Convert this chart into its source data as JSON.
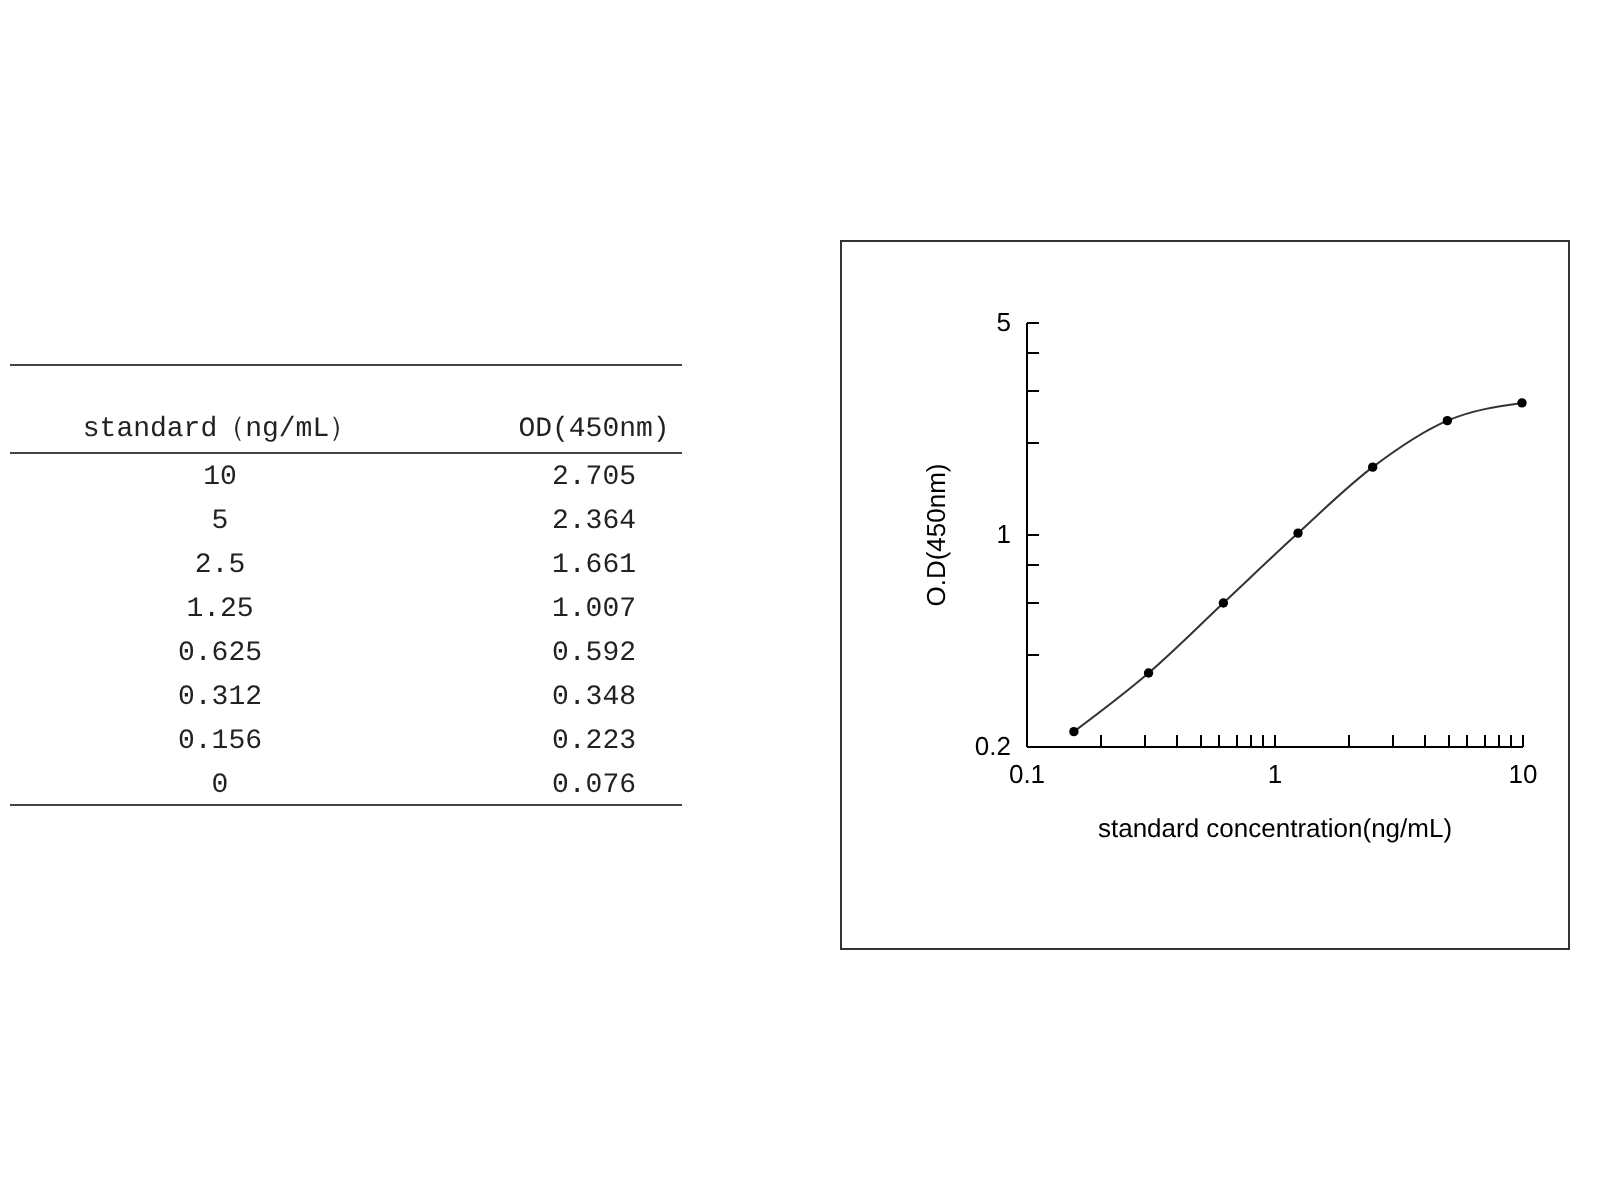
{
  "chart_data": [
    {
      "type": "other",
      "xlabel": "standard（ng/mL）",
      "ylabel": "OD(450nm)",
      "categories": [
        "10",
        "5",
        "2.5",
        "1.25",
        "0.625",
        "0.312",
        "0.156",
        "0"
      ],
      "values": [
        2.705,
        2.364,
        1.661,
        1.007,
        0.592,
        0.348,
        0.223,
        0.076
      ],
      "data_labels": true
    },
    {
      "type": "line",
      "xlabel": "standard concentration(ng/mL)",
      "ylabel": "O.D(450nm)",
      "log": "xy",
      "marker": "circle",
      "line_style": "solid",
      "grid": false,
      "legend": false,
      "x": [
        0.156,
        0.312,
        0.625,
        1.25,
        2.5,
        5,
        10
      ],
      "series": [
        {
          "color": "#000000",
          "values": [
            0.223,
            0.348,
            0.592,
            1.007,
            1.661,
            2.364,
            2.705
          ]
        }
      ],
      "xlim": [
        0.1,
        10
      ],
      "xticks": [
        0.1,
        {
          "value": 0.2,
          "label": null
        },
        {
          "value": 0.3,
          "label": null
        },
        {
          "value": 0.4,
          "label": null
        },
        {
          "value": 0.5,
          "label": null
        },
        {
          "value": 0.6,
          "label": null
        },
        {
          "value": 0.7,
          "label": null
        },
        {
          "value": 0.8,
          "label": null
        },
        {
          "value": 0.9,
          "label": null
        },
        1,
        {
          "value": 2,
          "label": null
        },
        {
          "value": 3,
          "label": null
        },
        {
          "value": 4,
          "label": null
        },
        {
          "value": 5,
          "label": null
        },
        {
          "value": 6,
          "label": null
        },
        {
          "value": 7,
          "label": null
        },
        {
          "value": 8,
          "label": null
        },
        {
          "value": 9,
          "label": null
        },
        10
      ],
      "ylim": [
        0.2,
        5
      ],
      "yticks": [
        0.2,
        {
          "value": 0.4,
          "label": null
        },
        {
          "value": 0.6,
          "label": null
        },
        {
          "value": 0.8,
          "label": null
        },
        1,
        {
          "value": 2,
          "label": null
        },
        {
          "value": 3,
          "label": null
        },
        {
          "value": 4,
          "label": null
        },
        5
      ]
    }
  ]
}
